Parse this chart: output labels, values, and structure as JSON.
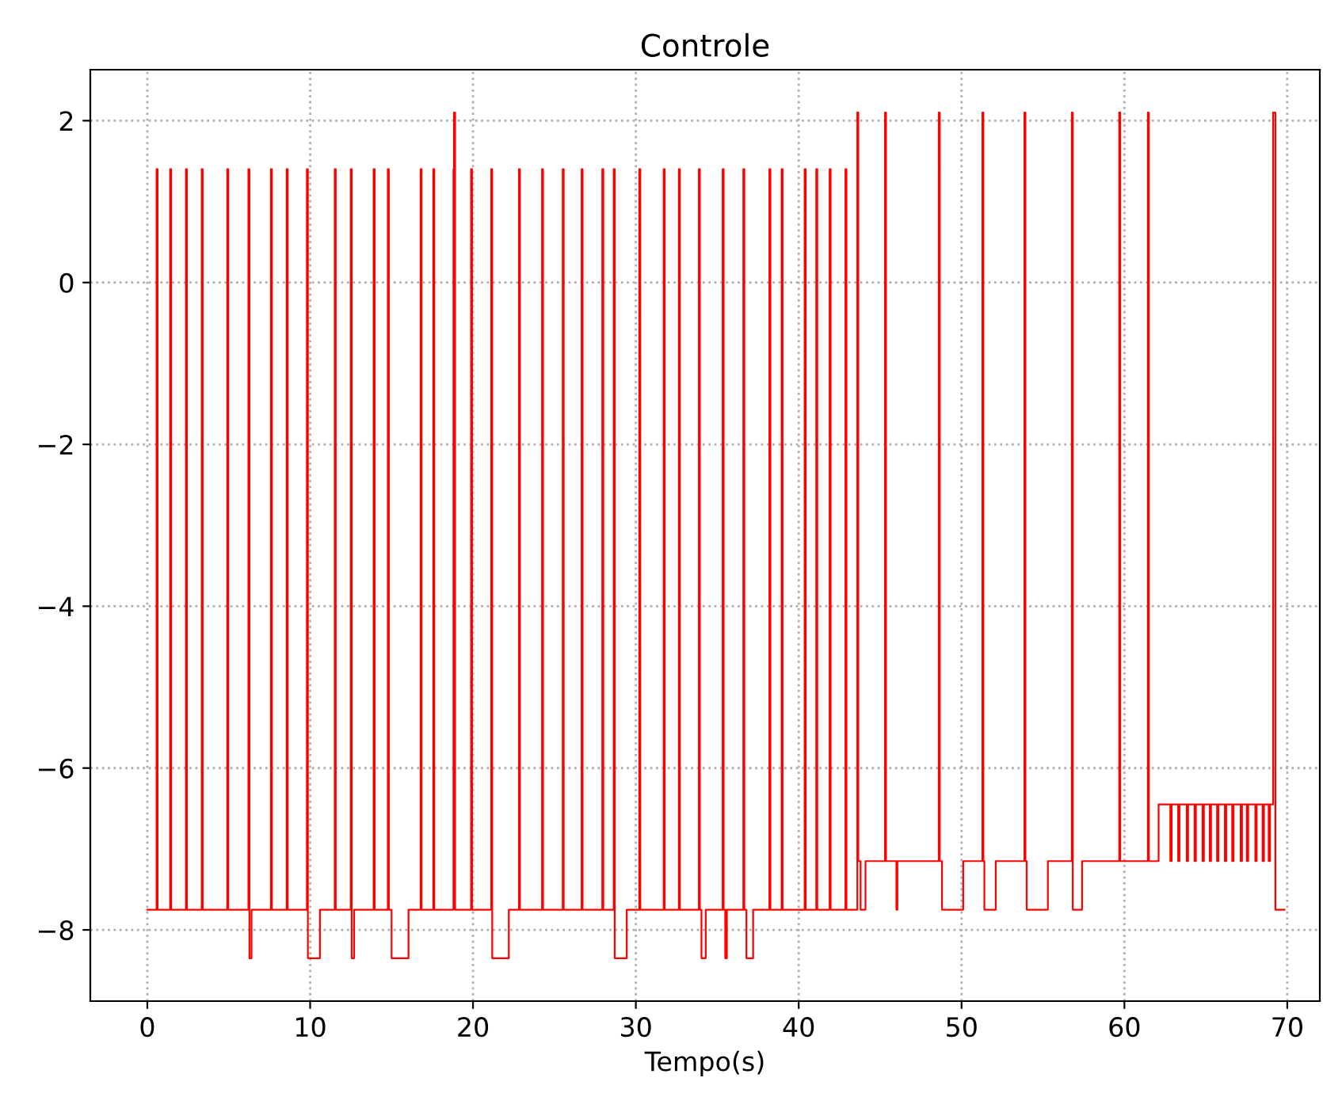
{
  "chart_data": {
    "type": "step",
    "title": "Controle",
    "xlabel": "Tempo(s)",
    "xlim": [
      -3.5,
      72.0
    ],
    "ylim": [
      -8.88,
      2.63
    ],
    "xticks": [
      0,
      10,
      20,
      30,
      40,
      50,
      60,
      70
    ],
    "yticks": [
      2,
      0,
      {
        "value": -2,
        "label": "−2"
      },
      {
        "value": -4,
        "label": "−4"
      },
      {
        "value": -6,
        "label": "−6"
      },
      {
        "value": -8,
        "label": "−8"
      }
    ],
    "grid": true,
    "line_style": "solid",
    "series": [
      {
        "color": "#ff0000",
        "x": [
          0,
          0.57,
          0.63,
          1.4,
          1.46,
          2.37,
          2.43,
          3.34,
          3.4,
          4.91,
          4.97,
          6.21,
          6.27,
          6.4,
          7.59,
          7.65,
          8.56,
          8.62,
          9.8,
          9.86,
          10.6,
          11.51,
          11.57,
          12.49,
          12.55,
          12.7,
          13.9,
          13.96,
          14.77,
          14.83,
          15.0,
          16.04,
          16.78,
          16.84,
          17.56,
          17.62,
          18.8,
          18.83,
          18.9,
          19.88,
          19.94,
          21.12,
          21.18,
          22.2,
          22.82,
          22.88,
          24.24,
          24.3,
          25.51,
          25.57,
          26.67,
          26.73,
          27.94,
          28.0,
          28.64,
          28.7,
          29.44,
          30.21,
          30.27,
          31.71,
          31.77,
          32.64,
          32.7,
          33.87,
          33.93,
          34.03,
          34.29,
          35.33,
          35.39,
          35.49,
          35.59,
          36.6,
          36.66,
          36.79,
          37.2,
          38.2,
          38.26,
          38.95,
          39.01,
          40.37,
          40.43,
          41.08,
          41.14,
          41.9,
          41.96,
          42.87,
          42.93,
          43.6,
          43.66,
          43.8,
          44.1,
          45.3,
          45.36,
          46.0,
          46.06,
          48.6,
          48.66,
          48.8,
          50.1,
          51.28,
          51.34,
          51.4,
          52.1,
          53.86,
          53.92,
          54.0,
          55.3,
          56.77,
          56.83,
          57.4,
          59.68,
          59.74,
          61.44,
          61.5,
          62.1,
          62.82,
          62.9,
          63.3,
          63.38,
          63.83,
          63.91,
          64.31,
          64.39,
          64.8,
          64.88,
          65.24,
          65.32,
          65.69,
          65.77,
          66.17,
          66.25,
          66.62,
          66.7,
          67.14,
          67.22,
          67.52,
          67.6,
          68.04,
          68.12,
          68.49,
          68.57,
          68.86,
          68.94,
          69.13,
          69.27,
          69.83
        ],
        "values": [
          -7.75,
          1.4,
          -7.75,
          1.4,
          -7.75,
          1.4,
          -7.75,
          1.4,
          -7.75,
          1.4,
          -7.75,
          1.4,
          -8.35,
          -7.75,
          1.4,
          -7.75,
          1.4,
          -7.75,
          1.4,
          -8.35,
          -7.75,
          1.4,
          -7.75,
          1.4,
          -8.35,
          -7.75,
          1.4,
          -7.75,
          1.4,
          -7.75,
          -8.35,
          -7.75,
          1.4,
          -7.75,
          1.4,
          -7.75,
          1.4,
          2.1,
          -7.75,
          1.4,
          -7.75,
          1.4,
          -8.35,
          -7.75,
          1.4,
          -7.75,
          1.4,
          -7.75,
          1.4,
          -7.75,
          1.4,
          -7.75,
          1.4,
          -7.75,
          1.4,
          -8.35,
          -7.75,
          1.4,
          -7.75,
          1.4,
          -7.75,
          1.4,
          -7.75,
          1.4,
          -7.75,
          -8.35,
          -7.75,
          1.4,
          -7.75,
          -8.35,
          -7.75,
          1.4,
          -7.75,
          -8.35,
          -7.75,
          1.4,
          -7.75,
          1.4,
          -7.75,
          1.4,
          -7.75,
          1.4,
          -7.75,
          1.4,
          -7.75,
          1.4,
          -7.75,
          2.1,
          -7.15,
          -7.75,
          -7.15,
          2.1,
          -7.15,
          -7.75,
          -7.15,
          2.1,
          -7.15,
          -7.75,
          -7.15,
          2.1,
          -7.15,
          -7.75,
          -7.15,
          2.1,
          -7.15,
          -7.75,
          -7.15,
          2.1,
          -7.75,
          -7.15,
          2.1,
          -7.15,
          2.1,
          -7.15,
          -6.45,
          -7.15,
          -6.45,
          -7.15,
          -6.45,
          -7.15,
          -6.45,
          -7.15,
          -6.45,
          -7.15,
          -6.45,
          -7.15,
          -6.45,
          -7.15,
          -6.45,
          -7.15,
          -6.45,
          -7.15,
          -6.45,
          -7.15,
          -6.45,
          -7.15,
          -6.45,
          -7.15,
          -6.45,
          -7.15,
          -6.45,
          -7.15,
          -6.45,
          2.1,
          -7.75,
          -7.75
        ]
      }
    ]
  }
}
